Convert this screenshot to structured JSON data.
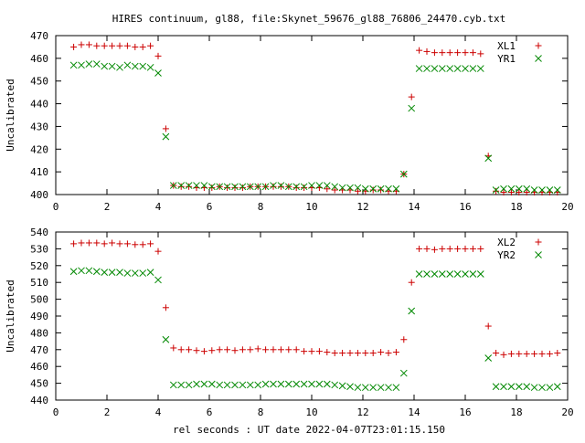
{
  "figure": {
    "title": "HIRES continuum, gl88, file:Skynet_59676_gl88_76806_24470.cyb.txt",
    "xlabel": "rel seconds : UT date 2022-04-07T23:01:15.150"
  },
  "chart_data": [
    {
      "type": "scatter",
      "ylabel": "Uncalibrated",
      "xlim": [
        0,
        20
      ],
      "ylim": [
        400,
        470
      ],
      "xticks": [
        0,
        2,
        4,
        6,
        8,
        10,
        12,
        14,
        16,
        18,
        20
      ],
      "yticks": [
        400,
        410,
        420,
        430,
        440,
        450,
        460,
        470
      ],
      "legend_position": "top-right",
      "series": [
        {
          "name": "XL1",
          "marker": "plus",
          "color": "#cc0000",
          "x": [
            0.7,
            1.0,
            1.3,
            1.6,
            1.9,
            2.2,
            2.5,
            2.8,
            3.1,
            3.4,
            3.7,
            4.0,
            4.3,
            4.6,
            4.9,
            5.2,
            5.5,
            5.8,
            6.1,
            6.4,
            6.7,
            7.0,
            7.3,
            7.6,
            7.9,
            8.2,
            8.5,
            8.8,
            9.1,
            9.4,
            9.7,
            10.0,
            10.3,
            10.6,
            10.9,
            11.2,
            11.5,
            11.8,
            12.1,
            12.4,
            12.7,
            13.0,
            13.3,
            13.6,
            13.9,
            14.2,
            14.5,
            14.8,
            15.1,
            15.4,
            15.7,
            16.0,
            16.3,
            16.6,
            16.9,
            17.2,
            17.5,
            17.8,
            18.1,
            18.4,
            18.7,
            19.0,
            19.3,
            19.6
          ],
          "y": [
            465,
            466,
            466,
            465.5,
            465.5,
            465.5,
            465.5,
            465.5,
            465,
            465,
            465.5,
            461,
            429,
            404,
            403.5,
            403.5,
            403,
            403,
            403,
            403.5,
            403,
            403,
            403,
            403.5,
            403.5,
            403.5,
            403.5,
            403.5,
            403.5,
            403,
            403,
            403,
            403,
            402.5,
            402,
            402,
            402,
            401.5,
            401.5,
            402,
            402,
            401.5,
            401.5,
            409,
            443,
            463.5,
            463,
            462.5,
            462.5,
            462.5,
            462.5,
            462.5,
            462.5,
            462,
            417,
            401.5,
            401,
            401,
            401,
            401,
            401,
            401,
            401,
            401
          ]
        },
        {
          "name": "YR1",
          "marker": "cross",
          "color": "#008800",
          "x": [
            0.7,
            1.0,
            1.3,
            1.6,
            1.9,
            2.2,
            2.5,
            2.8,
            3.1,
            3.4,
            3.7,
            4.0,
            4.3,
            4.6,
            4.9,
            5.2,
            5.5,
            5.8,
            6.1,
            6.4,
            6.7,
            7.0,
            7.3,
            7.6,
            7.9,
            8.2,
            8.5,
            8.8,
            9.1,
            9.4,
            9.7,
            10.0,
            10.3,
            10.6,
            10.9,
            11.2,
            11.5,
            11.8,
            12.1,
            12.4,
            12.7,
            13.0,
            13.3,
            13.6,
            13.9,
            14.2,
            14.5,
            14.8,
            15.1,
            15.4,
            15.7,
            16.0,
            16.3,
            16.6,
            16.9,
            17.2,
            17.5,
            17.8,
            18.1,
            18.4,
            18.7,
            19.0,
            19.3,
            19.6
          ],
          "y": [
            457,
            457,
            457.5,
            457.5,
            456.5,
            456.5,
            456,
            457,
            456.5,
            456.5,
            456,
            453.5,
            425.5,
            404,
            404,
            404,
            404,
            404,
            403.5,
            403.5,
            403.5,
            403.5,
            403.5,
            403.5,
            403.5,
            403.5,
            404,
            404,
            403.5,
            403.5,
            403.5,
            404,
            404,
            404,
            403.5,
            403,
            403,
            403,
            402.5,
            402.5,
            402.5,
            402.5,
            402.5,
            409,
            438,
            455.5,
            455.5,
            455.5,
            455.5,
            455.5,
            455.5,
            455.5,
            455.5,
            455.5,
            416,
            402,
            402.5,
            402.5,
            402.5,
            402.5,
            402,
            402,
            402,
            402
          ]
        }
      ]
    },
    {
      "type": "scatter",
      "ylabel": "Uncalibrated",
      "xlim": [
        0,
        20
      ],
      "ylim": [
        440,
        540
      ],
      "xticks": [
        0,
        2,
        4,
        6,
        8,
        10,
        12,
        14,
        16,
        18,
        20
      ],
      "yticks": [
        440,
        450,
        460,
        470,
        480,
        490,
        500,
        510,
        520,
        530,
        540
      ],
      "legend_position": "top-right",
      "series": [
        {
          "name": "XL2",
          "marker": "plus",
          "color": "#cc0000",
          "x": [
            0.7,
            1.0,
            1.3,
            1.6,
            1.9,
            2.2,
            2.5,
            2.8,
            3.1,
            3.4,
            3.7,
            4.0,
            4.3,
            4.6,
            4.9,
            5.2,
            5.5,
            5.8,
            6.1,
            6.4,
            6.7,
            7.0,
            7.3,
            7.6,
            7.9,
            8.2,
            8.5,
            8.8,
            9.1,
            9.4,
            9.7,
            10.0,
            10.3,
            10.6,
            10.9,
            11.2,
            11.5,
            11.8,
            12.1,
            12.4,
            12.7,
            13.0,
            13.3,
            13.6,
            13.9,
            14.2,
            14.5,
            14.8,
            15.1,
            15.4,
            15.7,
            16.0,
            16.3,
            16.6,
            16.9,
            17.2,
            17.5,
            17.8,
            18.1,
            18.4,
            18.7,
            19.0,
            19.3,
            19.6
          ],
          "y": [
            533,
            533.5,
            533.5,
            533.5,
            533,
            533.5,
            533,
            533,
            532.5,
            532.5,
            533,
            528.5,
            495,
            471,
            470,
            470,
            469.5,
            469,
            469.5,
            470,
            470,
            469.5,
            470,
            470,
            470.5,
            470,
            470,
            470,
            470,
            470,
            469,
            469,
            469,
            468.5,
            468,
            468,
            468,
            468,
            468,
            468,
            468.5,
            468,
            468.5,
            476,
            510,
            530,
            530,
            529.5,
            530,
            530,
            530,
            530,
            530,
            530,
            484,
            468,
            467,
            467.5,
            467.5,
            467.5,
            467.5,
            467.5,
            467.5,
            468
          ]
        },
        {
          "name": "YR2",
          "marker": "cross",
          "color": "#008800",
          "x": [
            0.7,
            1.0,
            1.3,
            1.6,
            1.9,
            2.2,
            2.5,
            2.8,
            3.1,
            3.4,
            3.7,
            4.0,
            4.3,
            4.6,
            4.9,
            5.2,
            5.5,
            5.8,
            6.1,
            6.4,
            6.7,
            7.0,
            7.3,
            7.6,
            7.9,
            8.2,
            8.5,
            8.8,
            9.1,
            9.4,
            9.7,
            10.0,
            10.3,
            10.6,
            10.9,
            11.2,
            11.5,
            11.8,
            12.1,
            12.4,
            12.7,
            13.0,
            13.3,
            13.6,
            13.9,
            14.2,
            14.5,
            14.8,
            15.1,
            15.4,
            15.7,
            16.0,
            16.3,
            16.6,
            16.9,
            17.2,
            17.5,
            17.8,
            18.1,
            18.4,
            18.7,
            19.0,
            19.3,
            19.6
          ],
          "y": [
            516.5,
            517,
            517,
            516.5,
            516,
            516,
            516,
            515.5,
            515.5,
            515.5,
            516,
            511.5,
            476,
            449,
            449,
            449,
            449.5,
            449.5,
            449.5,
            449,
            449,
            449,
            449,
            449,
            449,
            449.5,
            449.5,
            449.5,
            449.5,
            449.5,
            449.5,
            449.5,
            449.5,
            449.5,
            449,
            448.5,
            448,
            447.5,
            447.5,
            447.5,
            447.5,
            447.5,
            447.5,
            456,
            493,
            515,
            515,
            515,
            515,
            515,
            515,
            515,
            515,
            515,
            465,
            448,
            448,
            448,
            448,
            448,
            447.5,
            447.5,
            447.5,
            448
          ]
        }
      ]
    }
  ]
}
